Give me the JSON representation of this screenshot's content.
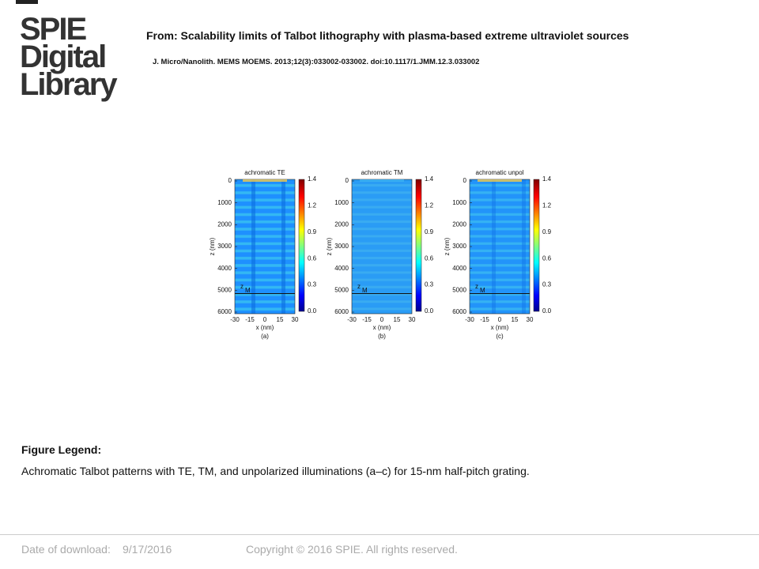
{
  "logo": {
    "lines": [
      "SPIE",
      "Digital",
      "Library"
    ]
  },
  "header": {
    "title": "From: Scalability limits of Talbot lithography with plasma-based extreme ultraviolet sources",
    "citation": "J. Micro/Nanolith. MEMS MOEMS. 2013;12(3):033002-033002. doi:10.1117/1.JMM.12.3.033002"
  },
  "figure": {
    "panels": [
      {
        "title": "achromatic TE",
        "label": "(a)"
      },
      {
        "title": "achromatic TM",
        "label": "(b)"
      },
      {
        "title": "achromatic unpol",
        "label": "(c)"
      }
    ],
    "y_label": "z (nm)",
    "x_label": "x (nm)",
    "z_marker": "z",
    "z_marker_sub": "M",
    "y_ticks": [
      "0",
      "1000",
      "2000",
      "3000",
      "4000",
      "5000",
      "6000"
    ],
    "x_ticks": [
      "-30",
      "-15",
      "0",
      "15",
      "30"
    ],
    "colorbar_ticks": [
      "1.4",
      "1.2",
      "0.9",
      "0.6",
      "0.3",
      "0.0"
    ]
  },
  "legend": {
    "heading": "Figure Legend:",
    "text": "Achromatic Talbot patterns with TE, TM, and unpolarized illuminations (a–c) for 15-nm half-pitch grating."
  },
  "footer": {
    "date_label": "Date of download:",
    "date": "9/17/2016",
    "copyright": "Copyright © 2016 SPIE. All rights reserved."
  }
}
